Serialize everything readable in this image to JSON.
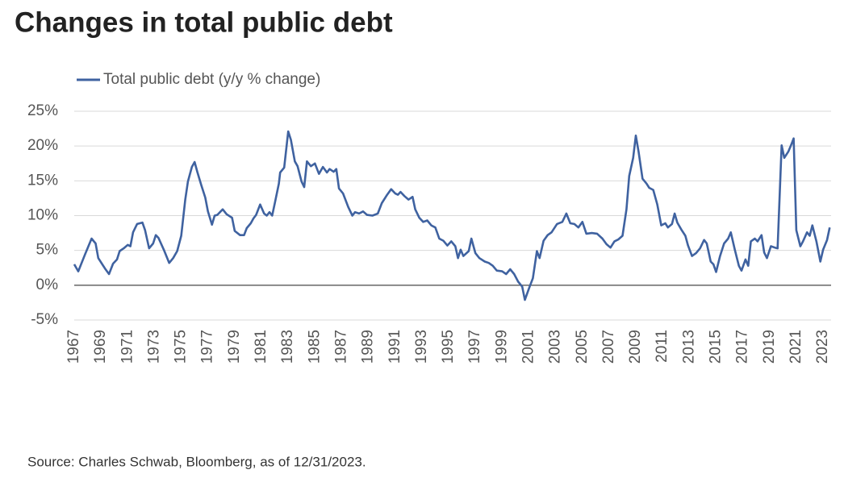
{
  "chart_data": {
    "type": "line",
    "title": "Changes in total public debt",
    "source": "Source: Charles Schwab, Bloomberg, as of 12/31/2023.",
    "x": [
      1967.0,
      1967.3,
      1967.8,
      1968.3,
      1968.6,
      1968.8,
      1969.3,
      1969.6,
      1969.9,
      1970.2,
      1970.4,
      1970.7,
      1971.0,
      1971.2,
      1971.4,
      1971.7,
      1972.1,
      1972.3,
      1972.6,
      1972.9,
      1973.1,
      1973.3,
      1973.7,
      1974.1,
      1974.4,
      1974.7,
      1975.0,
      1975.3,
      1975.5,
      1975.8,
      1976.0,
      1976.2,
      1976.5,
      1976.8,
      1977.0,
      1977.3,
      1977.5,
      1977.7,
      1978.1,
      1978.4,
      1978.8,
      1979.0,
      1979.4,
      1979.7,
      1979.9,
      1980.2,
      1980.4,
      1980.6,
      1980.9,
      1981.2,
      1981.4,
      1981.6,
      1981.8,
      1982.0,
      1982.3,
      1982.4,
      1982.7,
      1983.0,
      1983.2,
      1983.5,
      1983.7,
      1984.0,
      1984.2,
      1984.4,
      1984.7,
      1985.0,
      1985.3,
      1985.6,
      1985.9,
      1986.1,
      1986.4,
      1986.6,
      1986.8,
      1987.1,
      1987.5,
      1987.8,
      1988.0,
      1988.3,
      1988.6,
      1988.9,
      1989.3,
      1989.7,
      1990.0,
      1990.4,
      1990.7,
      1991.0,
      1991.2,
      1991.4,
      1991.7,
      1992.0,
      1992.3,
      1992.5,
      1992.8,
      1993.1,
      1993.4,
      1993.7,
      1994.0,
      1994.3,
      1994.6,
      1994.9,
      1995.2,
      1995.5,
      1995.7,
      1995.9,
      1996.1,
      1996.5,
      1996.7,
      1997.0,
      1997.3,
      1997.7,
      1998.0,
      1998.3,
      1998.6,
      1999.0,
      1999.3,
      1999.6,
      1999.9,
      2000.2,
      2000.5,
      2000.7,
      2001.0,
      2001.3,
      2001.6,
      2001.8,
      2002.1,
      2002.4,
      2002.7,
      2003.1,
      2003.5,
      2003.8,
      2004.1,
      2004.4,
      2004.7,
      2005.0,
      2005.3,
      2005.7,
      2006.1,
      2006.5,
      2006.8,
      2007.1,
      2007.4,
      2007.7,
      2008.0,
      2008.3,
      2008.5,
      2008.8,
      2009.0,
      2009.2,
      2009.5,
      2009.8,
      2010.0,
      2010.3,
      2010.6,
      2010.9,
      2011.2,
      2011.4,
      2011.7,
      2011.9,
      2012.1,
      2012.4,
      2012.7,
      2012.9,
      2013.2,
      2013.5,
      2013.8,
      2014.1,
      2014.3,
      2014.6,
      2014.8,
      2015.0,
      2015.3,
      2015.6,
      2015.9,
      2016.1,
      2016.4,
      2016.7,
      2016.9,
      2017.2,
      2017.4,
      2017.6,
      2017.9,
      2018.1,
      2018.4,
      2018.6,
      2018.8,
      2019.1,
      2019.4,
      2019.6,
      2019.9,
      2020.1,
      2020.4,
      2020.6,
      2020.8,
      2021.0,
      2021.3,
      2021.5,
      2021.8,
      2022.0,
      2022.2,
      2022.5,
      2022.8,
      2023.0,
      2023.3,
      2023.5
    ],
    "series": [
      {
        "name": "Total public debt (y/y % change)",
        "color": "#3f62a0",
        "values": [
          3.0,
          2.0,
          4.4,
          6.7,
          6.0,
          3.9,
          2.4,
          1.6,
          3.1,
          3.7,
          4.9,
          5.3,
          5.8,
          5.6,
          7.6,
          8.8,
          9.0,
          7.9,
          5.3,
          6.0,
          7.2,
          6.8,
          5.1,
          3.2,
          3.9,
          4.9,
          7.1,
          12.3,
          14.9,
          17.0,
          17.7,
          16.3,
          14.4,
          12.6,
          10.6,
          8.7,
          10.0,
          10.1,
          10.9,
          10.2,
          9.7,
          7.8,
          7.2,
          7.2,
          8.2,
          8.9,
          9.6,
          10.1,
          11.6,
          10.3,
          10.0,
          10.5,
          10.0,
          11.8,
          14.6,
          16.2,
          16.9,
          22.1,
          20.9,
          17.8,
          17.1,
          14.9,
          14.1,
          17.8,
          17.1,
          17.5,
          16.0,
          17.0,
          16.2,
          16.7,
          16.3,
          16.7,
          13.9,
          13.2,
          11.2,
          10.0,
          10.5,
          10.3,
          10.6,
          10.1,
          10.0,
          10.3,
          11.8,
          13.0,
          13.8,
          13.2,
          13.0,
          13.4,
          12.8,
          12.3,
          12.7,
          10.9,
          9.7,
          9.1,
          9.3,
          8.6,
          8.3,
          6.7,
          6.4,
          5.7,
          6.3,
          5.6,
          3.9,
          5.1,
          4.2,
          4.9,
          6.7,
          4.6,
          3.9,
          3.4,
          3.2,
          2.8,
          2.1,
          2.0,
          1.6,
          2.3,
          1.6,
          0.5,
          -0.2,
          -2.1,
          -0.5,
          1.0,
          4.9,
          3.9,
          6.4,
          7.2,
          7.6,
          8.8,
          9.1,
          10.3,
          8.9,
          8.8,
          8.3,
          9.1,
          7.4,
          7.5,
          7.4,
          6.7,
          5.9,
          5.4,
          6.3,
          6.6,
          7.1,
          10.9,
          15.7,
          18.3,
          21.5,
          19.2,
          15.3,
          14.6,
          14.0,
          13.7,
          11.6,
          8.6,
          8.9,
          8.3,
          8.8,
          10.3,
          9.0,
          8.0,
          7.1,
          5.7,
          4.2,
          4.6,
          5.3,
          6.5,
          6.0,
          3.4,
          3.0,
          1.9,
          4.2,
          6.0,
          6.7,
          7.6,
          5.1,
          2.8,
          2.1,
          3.7,
          2.8,
          6.3,
          6.7,
          6.3,
          7.2,
          4.7,
          3.9,
          5.6,
          5.4,
          5.3,
          20.1,
          18.3,
          19.2,
          20.1,
          21.1,
          7.9,
          5.6,
          6.3,
          7.6,
          7.1,
          8.6,
          6.3,
          3.4,
          5.1,
          6.5,
          8.3
        ]
      }
    ],
    "xlim": [
      1967,
      2023.6
    ],
    "xticks": [
      1967,
      1969,
      1971,
      1973,
      1975,
      1977,
      1979,
      1981,
      1983,
      1985,
      1987,
      1989,
      1991,
      1993,
      1995,
      1997,
      1999,
      2001,
      2003,
      2005,
      2007,
      2009,
      2011,
      2013,
      2015,
      2017,
      2019,
      2021,
      2023
    ],
    "ylim": [
      -5,
      25
    ],
    "yticks": [
      {
        "value": -5,
        "label": "-5%"
      },
      {
        "value": 0,
        "label": "0%"
      },
      {
        "value": 5,
        "label": "5%"
      },
      {
        "value": 10,
        "label": "10%"
      },
      {
        "value": 15,
        "label": "15%"
      },
      {
        "value": 20,
        "label": "20%"
      },
      {
        "value": 25,
        "label": "25%"
      }
    ],
    "grid": true
  }
}
